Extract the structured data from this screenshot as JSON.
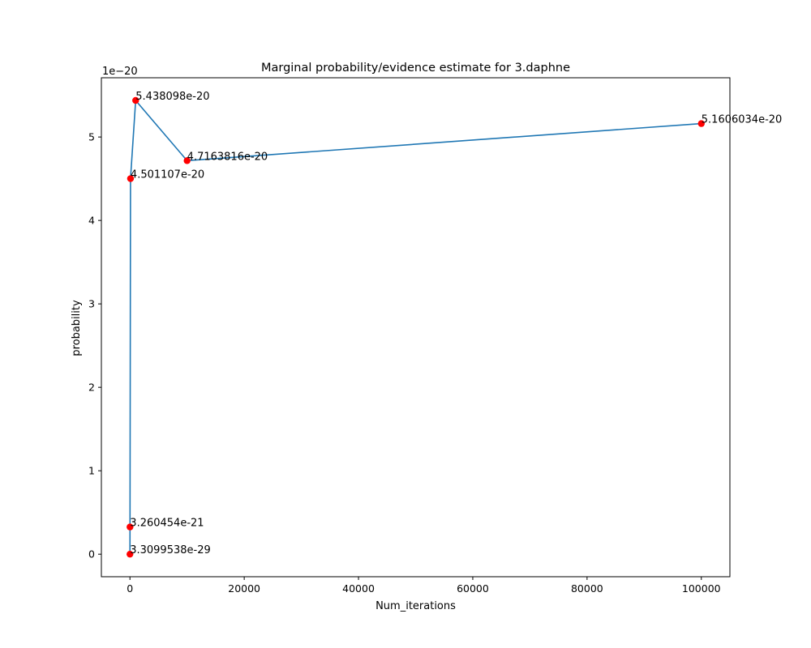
{
  "chart_data": {
    "type": "line",
    "title": "Marginal probability/evidence estimate for 3.daphne",
    "xlabel": "Num_iterations",
    "ylabel": "probability",
    "y_offset_label": "1e−20",
    "xlim": [
      -5000,
      105000
    ],
    "ylim": [
      -0.27,
      5.71
    ],
    "y_scale_exponent": -20,
    "grid": false,
    "x_ticks": [
      0,
      20000,
      40000,
      60000,
      80000,
      100000
    ],
    "x_tick_labels": [
      "0",
      "20000",
      "40000",
      "60000",
      "80000",
      "100000"
    ],
    "y_ticks": [
      0,
      1,
      2,
      3,
      4,
      5
    ],
    "y_tick_labels": [
      "0",
      "1",
      "2",
      "3",
      "4",
      "5"
    ],
    "series": [
      {
        "line_color": "#1f77b4",
        "marker_color": "#ff0000",
        "x": [
          1,
          10,
          100,
          1000,
          10000,
          100000
        ],
        "y": [
          3.3099538e-09,
          0.3260454,
          4.501107,
          5.438098,
          4.7163816,
          5.1606034
        ],
        "labels": [
          "3.3099538e-29",
          "3.260454e-21",
          "4.501107e-20",
          "5.438098e-20",
          "4.7163816e-20",
          "5.1606034e-20"
        ]
      }
    ]
  }
}
